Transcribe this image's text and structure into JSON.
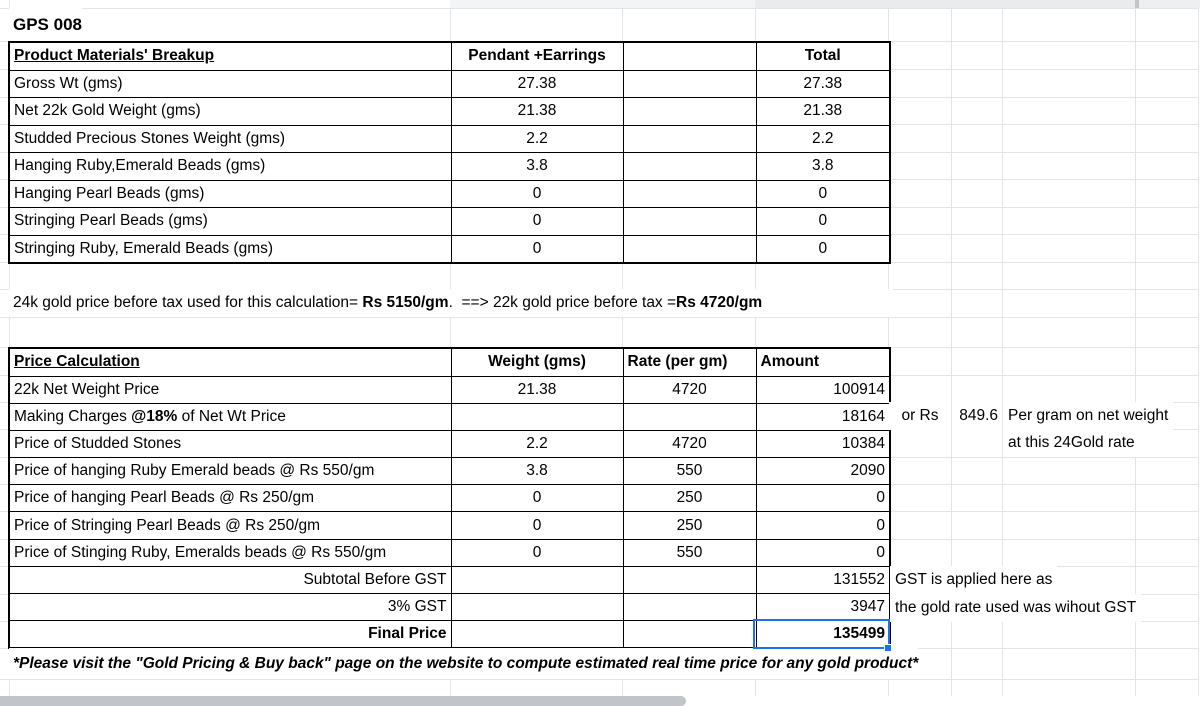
{
  "title": "GPS 008",
  "colors": {
    "selection": "#1a73e8",
    "gridline": "#e2e4e5",
    "table_border": "#000000",
    "scrollbar": "#c1c4c8"
  },
  "materials_table": {
    "title": "Product Materials' Breakup",
    "columns": {
      "pendant": "Pendant +Earrings",
      "middle": "",
      "total": "Total"
    },
    "rows": [
      {
        "label": "Gross Wt (gms)",
        "pendant": "27.38",
        "total": "27.38"
      },
      {
        "label": "Net 22k Gold Weight (gms)",
        "pendant": "21.38",
        "total": "21.38"
      },
      {
        "label": "Studded Precious Stones Weight (gms)",
        "pendant": "2.2",
        "total": "2.2"
      },
      {
        "label": "Hanging Ruby,Emerald Beads (gms)",
        "pendant": "3.8",
        "total": "3.8"
      },
      {
        "label": "Hanging Pearl Beads (gms)",
        "pendant": "0",
        "total": "0"
      },
      {
        "label": "Stringing Pearl Beads (gms)",
        "pendant": "0",
        "total": "0"
      },
      {
        "label": "Stringing Ruby, Emerald Beads (gms)",
        "pendant": "0",
        "total": "0"
      }
    ]
  },
  "gold_price_note": {
    "prefix": "24k gold price before tax used for this calculation= ",
    "price_24k": "Rs 5150/gm",
    "middle": ".  ==> 22k gold price before tax =",
    "price_22k": "Rs 4720/gm"
  },
  "price_table": {
    "title": "Price Calculation",
    "columns": {
      "weight": "Weight (gms)",
      "rate": "Rate (per gm)",
      "amount": "Amount"
    },
    "rows": [
      {
        "label": "22k Net Weight Price",
        "weight": "21.38",
        "rate": "4720",
        "amount": "100914"
      },
      {
        "label_pre": " Making Charges ",
        "label_bold": "@18%",
        "label_post": " of Net Wt Price",
        "weight": "",
        "rate": "",
        "amount": "18164"
      },
      {
        "label": "Price of Studded Stones",
        "weight": "2.2",
        "rate": "4720",
        "amount": "10384"
      },
      {
        "label": "Price of hanging Ruby Emerald beads @ Rs 550/gm",
        "weight": "3.8",
        "rate": "550",
        "amount": "2090"
      },
      {
        "label": "Price of hanging Pearl Beads @ Rs 250/gm",
        "weight": "0",
        "rate": "250",
        "amount": "0"
      },
      {
        "label": "Price of Stringing Pearl Beads @ Rs 250/gm",
        "weight": "0",
        "rate": "250",
        "amount": "0"
      },
      {
        "label": "Price of Stinging Ruby, Emeralds beads @ Rs 550/gm",
        "weight": "0",
        "rate": "550",
        "amount": "0"
      }
    ],
    "summary": [
      {
        "label": "Subtotal Before GST",
        "amount": "131552"
      },
      {
        "label": "3% GST",
        "amount": "3947"
      },
      {
        "label": "Final Price",
        "amount": "135499"
      }
    ]
  },
  "side_notes": {
    "making_charge_unit": {
      "prefix": "or Rs",
      "value": "849.6",
      "line1": "Per gram on net weight",
      "line2": "at this 24Gold rate"
    },
    "gst": {
      "line1": "GST is applied here as",
      "line2": "the gold rate used was wihout GST"
    }
  },
  "footer_note": "*Please visit the \"Gold Pricing & Buy back\" page on the website to compute estimated real time price for any gold product*"
}
